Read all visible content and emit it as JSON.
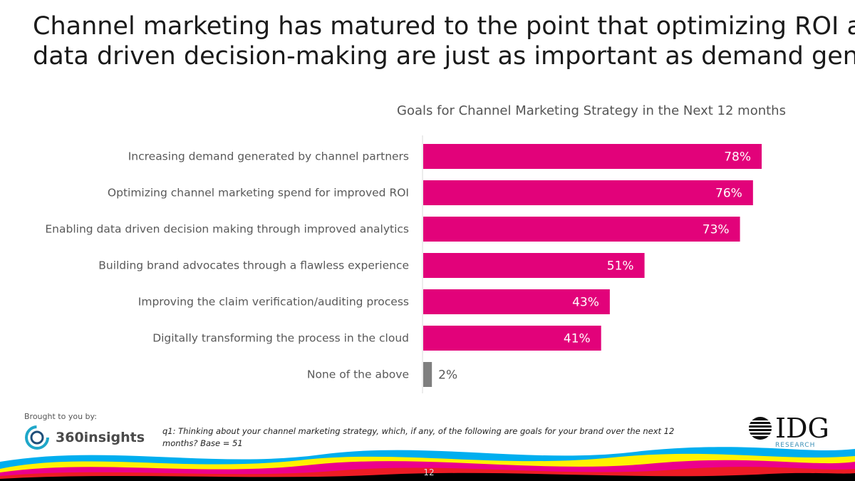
{
  "slide": {
    "title_line1": "Channel marketing has matured to the point that optimizing ROI and",
    "title_line2": "data driven decision-making are just as important as demand gen",
    "page_number": "12"
  },
  "chart_data": {
    "type": "bar",
    "orientation": "horizontal",
    "title": "Goals for Channel Marketing Strategy in the Next 12 months",
    "categories": [
      "Increasing demand generated by channel partners",
      "Optimizing channel marketing spend for improved ROI",
      "Enabling data driven decision making through improved analytics",
      "Building brand advocates through a flawless experience",
      "Improving the claim verification/auditing process",
      "Digitally transforming the process in the cloud",
      "None of the above"
    ],
    "values": [
      78,
      76,
      73,
      51,
      43,
      41,
      2
    ],
    "data_labels": [
      "78%",
      "76%",
      "73%",
      "51%",
      "43%",
      "41%",
      "2%"
    ],
    "unit": "%",
    "xlim": [
      0,
      100
    ],
    "colors": [
      "#e2027a",
      "#e2027a",
      "#e2027a",
      "#e2027a",
      "#e2027a",
      "#e2027a",
      "#7f7f7f"
    ],
    "xlabel": "",
    "ylabel": "",
    "grid": false
  },
  "footer": {
    "brought_by": "Brought to you by:",
    "sponsor_name": "360insights",
    "footnote": "q1: Thinking about your channel marketing strategy, which, if any, of the following are goals for your brand over the next 12 months? Base = 51",
    "idg_logo": "IDG",
    "idg_sub": "RESEARCH"
  },
  "colors": {
    "bar": "#e2027a",
    "bar_none": "#7f7f7f",
    "wave_cyan": "#00aeef",
    "wave_magenta": "#ec008c",
    "wave_yellow": "#fff200",
    "wave_red": "#ed1c24",
    "wave_black": "#000000"
  }
}
